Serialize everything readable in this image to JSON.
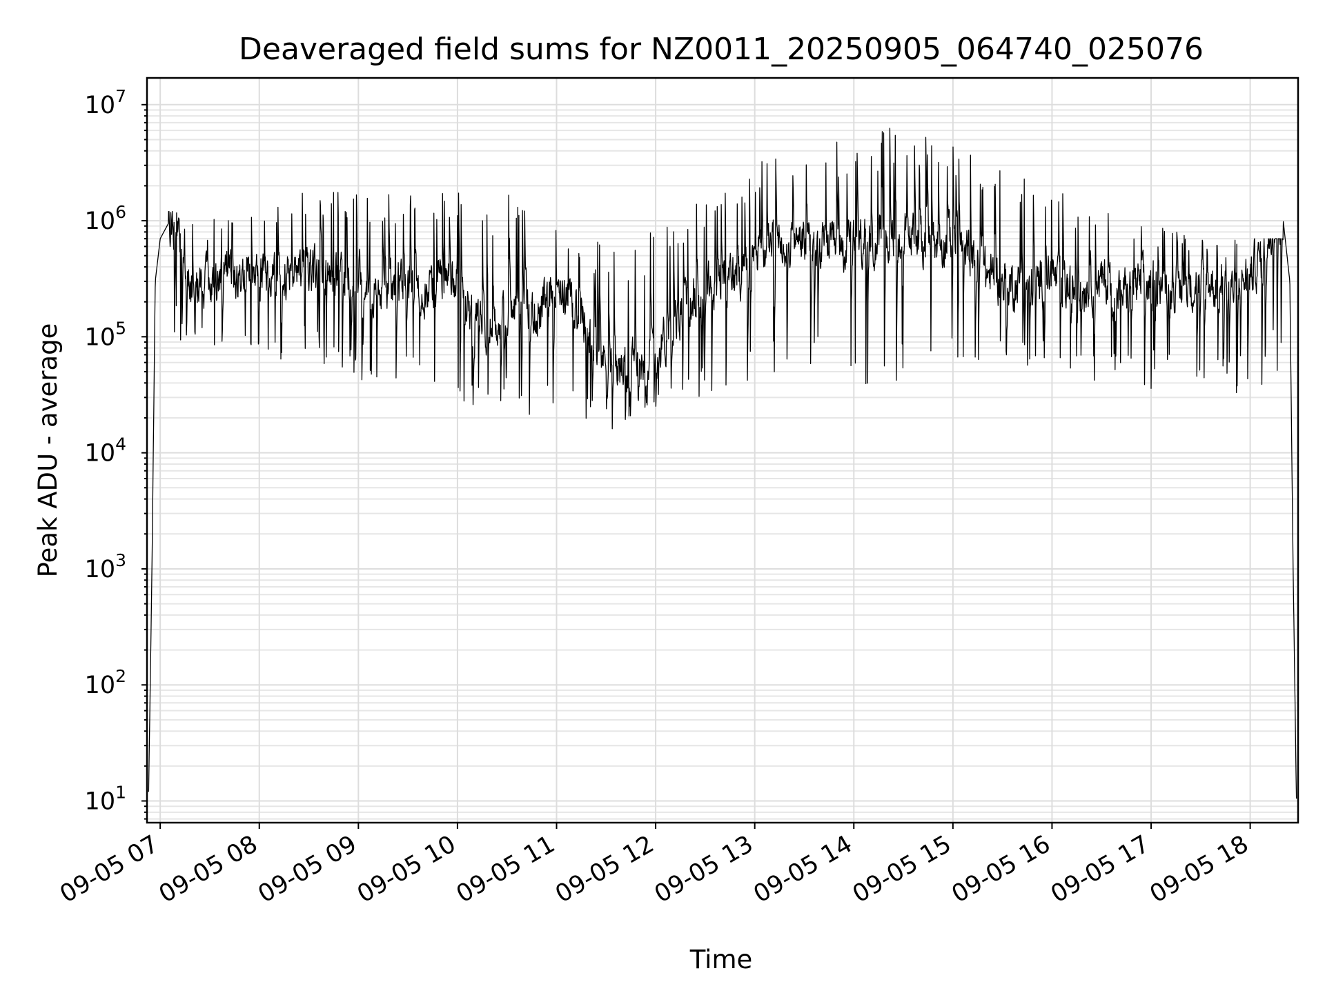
{
  "chart_data": {
    "type": "line",
    "title": "Deaveraged field sums for NZ0011_20250905_064740_025076",
    "xlabel": "Time",
    "ylabel": "Peak ADU - average",
    "yscale": "log",
    "grid": true,
    "legend": "none",
    "xlim": [
      "2025-09-05 06:52",
      "2025-09-05 18:29"
    ],
    "ylim": [
      6.5,
      17000000
    ],
    "x_ticks": [
      "09-05 07",
      "09-05 08",
      "09-05 09",
      "09-05 10",
      "09-05 11",
      "09-05 12",
      "09-05 13",
      "09-05 14",
      "09-05 15",
      "09-05 16",
      "09-05 17",
      "09-05 18"
    ],
    "y_ticks": [
      {
        "value": 10,
        "base": "10",
        "exp": "1"
      },
      {
        "value": 100,
        "base": "10",
        "exp": "2"
      },
      {
        "value": 1000,
        "base": "10",
        "exp": "3"
      },
      {
        "value": 10000,
        "base": "10",
        "exp": "4"
      },
      {
        "value": 100000,
        "base": "10",
        "exp": "5"
      },
      {
        "value": 1000000,
        "base": "10",
        "exp": "6"
      },
      {
        "value": 10000000,
        "base": "10",
        "exp": "7"
      }
    ],
    "series": [
      {
        "color": "#000000",
        "x": [
          "2025-09-05 06:53",
          "2025-09-05 06:55",
          "2025-09-05 06:57",
          "2025-09-05 07:00",
          "2025-09-05 07:05",
          "2025-09-05 07:10",
          "2025-09-05 07:15",
          "2025-09-05 07:20",
          "2025-09-05 07:25",
          "2025-09-05 07:30",
          "2025-09-05 07:40",
          "2025-09-05 07:50",
          "2025-09-05 08:00",
          "2025-09-05 08:10",
          "2025-09-05 08:20",
          "2025-09-05 08:30",
          "2025-09-05 08:40",
          "2025-09-05 08:50",
          "2025-09-05 09:00",
          "2025-09-05 09:10",
          "2025-09-05 09:20",
          "2025-09-05 09:30",
          "2025-09-05 09:40",
          "2025-09-05 09:50",
          "2025-09-05 10:00",
          "2025-09-05 10:10",
          "2025-09-05 10:20",
          "2025-09-05 10:30",
          "2025-09-05 10:40",
          "2025-09-05 10:50",
          "2025-09-05 11:00",
          "2025-09-05 11:10",
          "2025-09-05 11:20",
          "2025-09-05 11:30",
          "2025-09-05 11:40",
          "2025-09-05 11:50",
          "2025-09-05 12:00",
          "2025-09-05 12:10",
          "2025-09-05 12:20",
          "2025-09-05 12:30",
          "2025-09-05 12:40",
          "2025-09-05 12:50",
          "2025-09-05 13:00",
          "2025-09-05 13:10",
          "2025-09-05 13:20",
          "2025-09-05 13:30",
          "2025-09-05 13:40",
          "2025-09-05 13:50",
          "2025-09-05 14:00",
          "2025-09-05 14:10",
          "2025-09-05 14:20",
          "2025-09-05 14:30",
          "2025-09-05 14:40",
          "2025-09-05 14:50",
          "2025-09-05 15:00",
          "2025-09-05 15:10",
          "2025-09-05 15:20",
          "2025-09-05 15:30",
          "2025-09-05 15:40",
          "2025-09-05 15:50",
          "2025-09-05 16:00",
          "2025-09-05 16:10",
          "2025-09-05 16:20",
          "2025-09-05 16:30",
          "2025-09-05 16:40",
          "2025-09-05 16:50",
          "2025-09-05 17:00",
          "2025-09-05 17:10",
          "2025-09-05 17:20",
          "2025-09-05 17:30",
          "2025-09-05 17:40",
          "2025-09-05 17:50",
          "2025-09-05 18:00",
          "2025-09-05 18:10",
          "2025-09-05 18:15",
          "2025-09-05 18:20",
          "2025-09-05 18:24",
          "2025-09-05 18:26",
          "2025-09-05 18:28"
        ],
        "y": [
          12,
          1000,
          300000,
          700000,
          950000,
          800000,
          400000,
          250000,
          300000,
          280000,
          320000,
          350000,
          380000,
          300000,
          360000,
          400000,
          350000,
          300000,
          320000,
          250000,
          280000,
          300000,
          250000,
          320000,
          280000,
          150000,
          120000,
          150000,
          200000,
          150000,
          300000,
          180000,
          100000,
          60000,
          50000,
          60000,
          80000,
          120000,
          200000,
          250000,
          300000,
          350000,
          500000,
          650000,
          700000,
          650000,
          600000,
          550000,
          600000,
          650000,
          700000,
          750000,
          700000,
          650000,
          700000,
          500000,
          350000,
          300000,
          280000,
          300000,
          320000,
          250000,
          280000,
          300000,
          250000,
          260000,
          300000,
          280000,
          260000,
          300000,
          280000,
          260000,
          350000,
          600000,
          1200000,
          1000000,
          300000,
          1000,
          10
        ],
        "envelope": {
          "x": [
            "2025-09-05 07:30",
            "2025-09-05 08:30",
            "2025-09-05 09:30",
            "2025-09-05 10:30",
            "2025-09-05 11:30",
            "2025-09-05 12:30",
            "2025-09-05 13:30",
            "2025-09-05 14:30",
            "2025-09-05 15:30",
            "2025-09-05 16:30",
            "2025-09-05 17:30"
          ],
          "high": [
            1200000,
            2300000,
            1700000,
            1800000,
            700000,
            1600000,
            5500000,
            6500000,
            3000000,
            1300000,
            700000
          ],
          "low": [
            70000,
            60000,
            30000,
            20000,
            15000,
            30000,
            60000,
            30000,
            50000,
            40000,
            30000
          ]
        }
      }
    ]
  }
}
